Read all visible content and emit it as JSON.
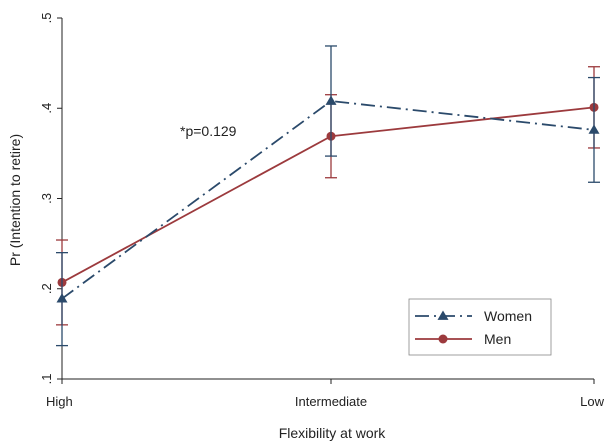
{
  "chart_data": {
    "type": "line",
    "xlabel": "Flexibility at work",
    "ylabel": "Pr (Intention to retire)",
    "categories": [
      "High",
      "Intermediate",
      "Low"
    ],
    "ylim": [
      0.1,
      0.5
    ],
    "yticks": [
      0.1,
      0.2,
      0.3,
      0.4,
      0.5
    ],
    "ytick_labels": [
      ".1",
      ".2",
      ".3",
      ".4",
      ".5"
    ],
    "grid": false,
    "legend_position": "bottom-right",
    "annotation": "*p=0.129",
    "series": [
      {
        "name": "Women",
        "color": "#2b4a6b",
        "line_style": "dash-dot",
        "marker": "triangle",
        "values": [
          0.189,
          0.408,
          0.376
        ],
        "ci_low": [
          0.137,
          0.347,
          0.318
        ],
        "ci_high": [
          0.24,
          0.469,
          0.434
        ]
      },
      {
        "name": "Men",
        "color": "#9c3a3d",
        "line_style": "solid",
        "marker": "circle",
        "values": [
          0.207,
          0.369,
          0.401
        ],
        "ci_low": [
          0.16,
          0.323,
          0.356
        ],
        "ci_high": [
          0.254,
          0.415,
          0.446
        ]
      }
    ]
  }
}
